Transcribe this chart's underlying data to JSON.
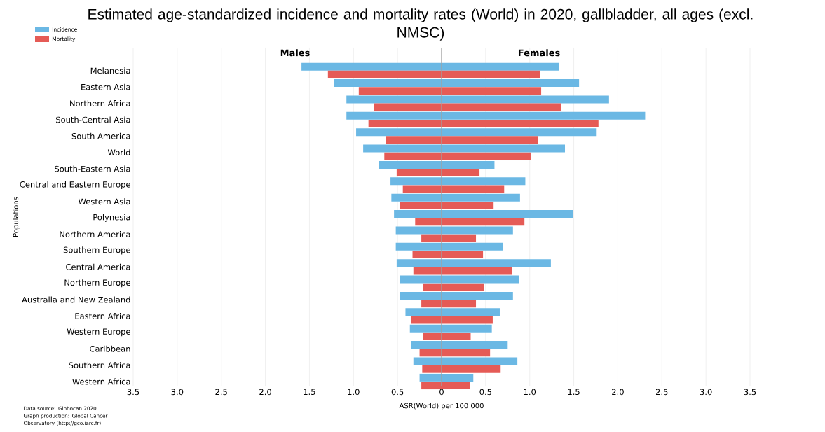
{
  "chart_data": [
    {
      "type": "bar",
      "orientation": "horizontal",
      "title": "Estimated age-standardized incidence and mortality rates (World) in 2020, gallbladder, all ages (excl. NMSC)",
      "subtitle": "Males",
      "ylabel": "Populations",
      "categories": [
        "Melanesia",
        "Eastern Asia",
        "Northern Africa",
        "South-Central Asia",
        "South America",
        "World",
        "South-Eastern Asia",
        "Central and Eastern Europe",
        "Western Asia",
        "Polynesia",
        "Northern America",
        "Southern Europe",
        "Central America",
        "Northern Europe",
        "Australia and New Zealand",
        "Eastern Africa",
        "Western Europe",
        "Caribbean",
        "Southern Africa",
        "Western Africa"
      ],
      "series": [
        {
          "name": "Incidence",
          "color": "#6bb8e4",
          "values": [
            1.59,
            1.22,
            1.08,
            1.08,
            0.97,
            0.89,
            0.71,
            0.58,
            0.57,
            0.54,
            0.52,
            0.52,
            0.51,
            0.47,
            0.47,
            0.41,
            0.36,
            0.35,
            0.32,
            0.25
          ]
        },
        {
          "name": "Mortality",
          "color": "#e55b56",
          "values": [
            1.29,
            0.94,
            0.77,
            0.83,
            0.63,
            0.65,
            0.51,
            0.44,
            0.47,
            0.3,
            0.23,
            0.33,
            0.32,
            0.21,
            0.23,
            0.35,
            0.21,
            0.25,
            0.22,
            0.23
          ]
        }
      ],
      "xlim": [
        3.5,
        0
      ],
      "xticks": [
        {
          "value": 3.5,
          "label": "3.5"
        },
        {
          "value": 3,
          "label": "3.0"
        },
        {
          "value": 2.5,
          "label": "2.5"
        },
        {
          "value": 2,
          "label": "2.0"
        },
        {
          "value": 1.5,
          "label": "1.5"
        },
        {
          "value": 1,
          "label": "1.0"
        },
        {
          "value": 0.5,
          "label": "0.5"
        },
        {
          "value": 0,
          "label": null
        }
      ],
      "grid": "x",
      "legend": "top left",
      "annotations": [
        "Data source: Globocan 2020",
        "Graph production: Global Cancer Observatory (http://gco.iarc.fr)"
      ]
    },
    {
      "type": "bar",
      "orientation": "horizontal",
      "subtitle": "Females",
      "xlabel": "ASR(World) per 100 000",
      "tick_labels": "x",
      "series": [
        {
          "color": "#6bb8e4",
          "values": [
            1.33,
            1.56,
            1.9,
            2.31,
            1.76,
            1.4,
            0.6,
            0.95,
            0.89,
            1.49,
            0.81,
            0.7,
            1.24,
            0.88,
            0.81,
            0.66,
            0.57,
            0.75,
            0.86,
            0.36
          ]
        },
        {
          "color": "#e55b56",
          "values": [
            1.12,
            1.13,
            1.36,
            1.78,
            1.09,
            1.01,
            0.43,
            0.71,
            0.59,
            0.94,
            0.39,
            0.47,
            0.8,
            0.48,
            0.39,
            0.58,
            0.33,
            0.55,
            0.67,
            0.32
          ]
        }
      ],
      "xlim": [
        0,
        3.5
      ],
      "xticks": [
        {
          "value": 0,
          "label": "0"
        },
        {
          "value": 0.5,
          "label": "0.5"
        },
        {
          "value": 1,
          "label": "1.0"
        },
        {
          "value": 1.5,
          "label": "1.5"
        },
        {
          "value": 2,
          "label": "2.0"
        },
        {
          "value": 2.5,
          "label": "2.5"
        },
        {
          "value": 3,
          "label": "3.0"
        },
        {
          "value": 3.5,
          "label": "3.5"
        }
      ],
      "grid": "x"
    }
  ]
}
